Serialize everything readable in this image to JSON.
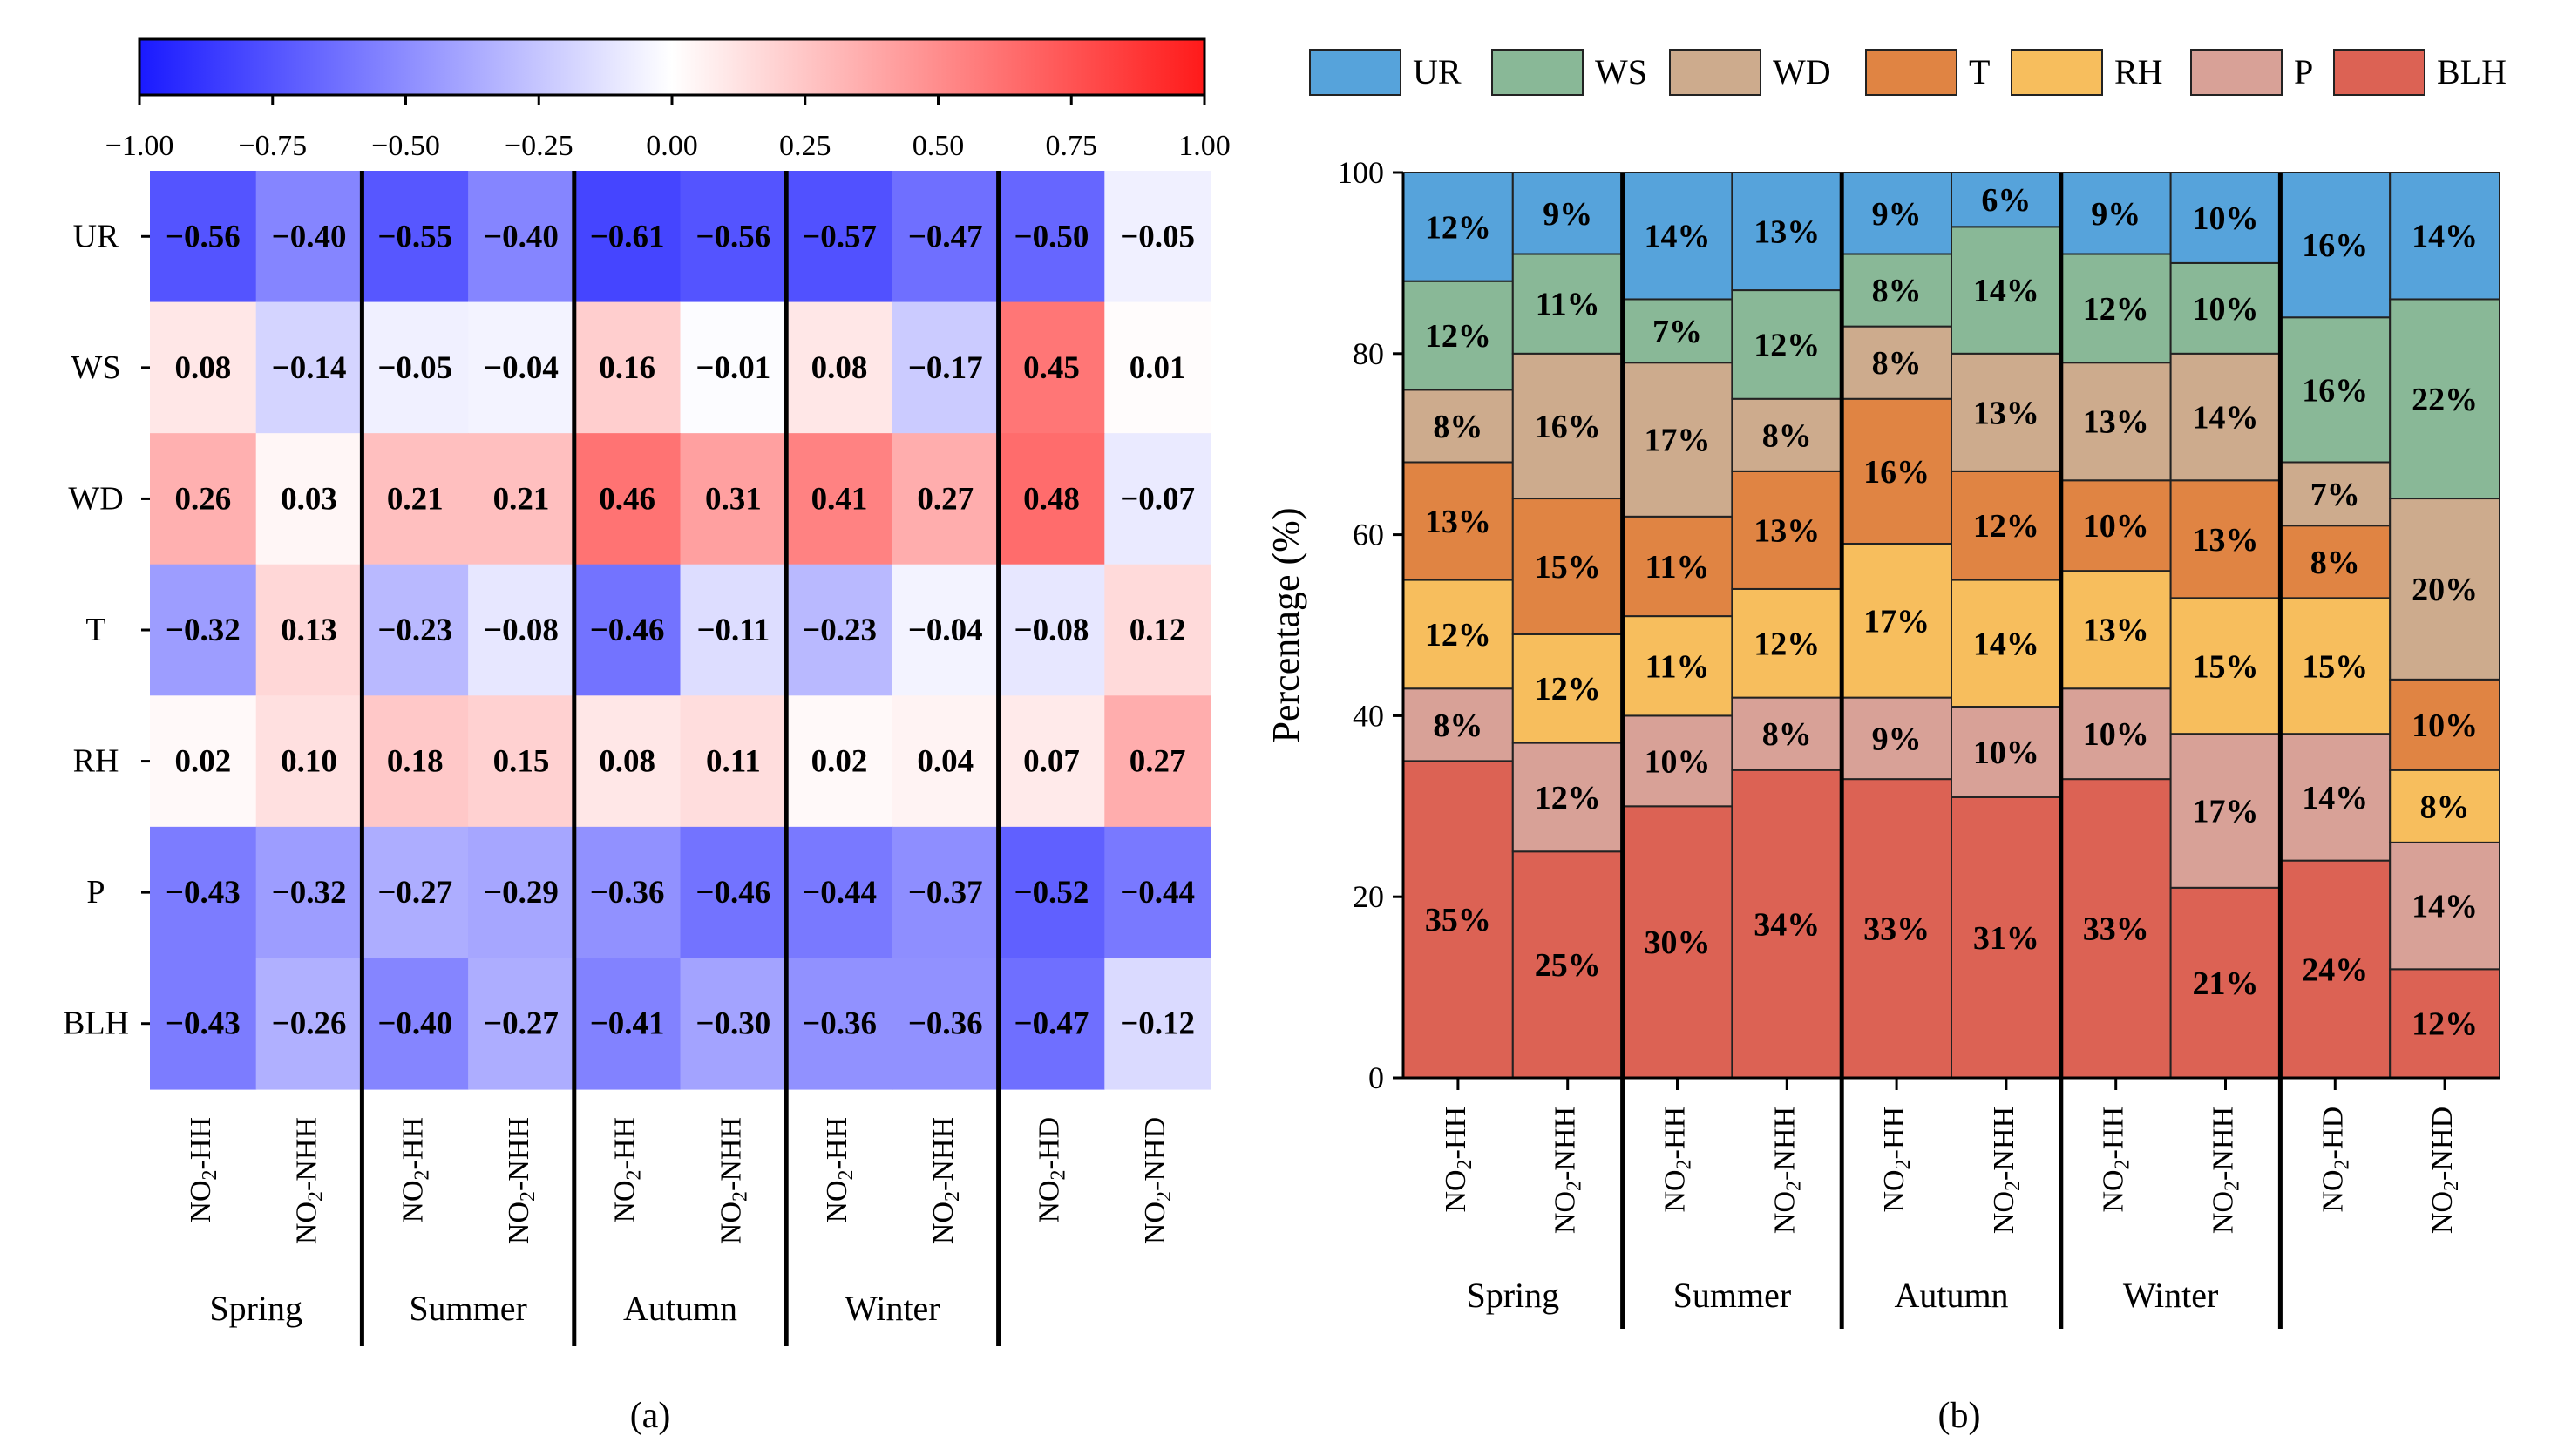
{
  "chart_data": [
    {
      "type": "heatmap",
      "panel_label": "(a)",
      "colorbar": {
        "ticks": [
          "−1.00",
          "−0.75",
          "−0.50",
          "−0.25",
          "0.00",
          "0.25",
          "0.50",
          "0.75",
          "1.00"
        ],
        "range": [
          -1,
          1
        ],
        "low_color": "#1a1aff",
        "mid_color": "#ffffff",
        "high_color": "#ff1a1a"
      },
      "rows": [
        "UR",
        "WS",
        "WD",
        "T",
        "RH",
        "P",
        "BLH"
      ],
      "columns": [
        {
          "main": "NO",
          "sub": "2",
          "suffix": "-HH"
        },
        {
          "main": "NO",
          "sub": "2",
          "suffix": "-NHH"
        },
        {
          "main": "NO",
          "sub": "2",
          "suffix": "-HH"
        },
        {
          "main": "NO",
          "sub": "2",
          "suffix": "-NHH"
        },
        {
          "main": "NO",
          "sub": "2",
          "suffix": "-HH"
        },
        {
          "main": "NO",
          "sub": "2",
          "suffix": "-NHH"
        },
        {
          "main": "NO",
          "sub": "2",
          "suffix": "-HH"
        },
        {
          "main": "NO",
          "sub": "2",
          "suffix": "-NHH"
        },
        {
          "main": "NO",
          "sub": "2",
          "suffix": "-HD"
        },
        {
          "main": "NO",
          "sub": "2",
          "suffix": "-NHD"
        }
      ],
      "groups": [
        "Spring",
        "Summer",
        "Autumn",
        "Winter"
      ],
      "values": [
        [
          -0.56,
          -0.4,
          -0.55,
          -0.4,
          -0.61,
          -0.56,
          -0.57,
          -0.47,
          -0.5,
          -0.05
        ],
        [
          0.08,
          -0.14,
          -0.05,
          -0.04,
          0.16,
          -0.01,
          0.08,
          -0.17,
          0.45,
          0.01
        ],
        [
          0.26,
          0.03,
          0.21,
          0.21,
          0.46,
          0.31,
          0.41,
          0.27,
          0.48,
          -0.07
        ],
        [
          -0.32,
          0.13,
          -0.23,
          -0.08,
          -0.46,
          -0.11,
          -0.23,
          -0.04,
          -0.08,
          0.12
        ],
        [
          0.02,
          0.1,
          0.18,
          0.15,
          0.08,
          0.11,
          0.02,
          0.04,
          0.07,
          0.27
        ],
        [
          -0.43,
          -0.32,
          -0.27,
          -0.29,
          -0.36,
          -0.46,
          -0.44,
          -0.37,
          -0.52,
          -0.44
        ],
        [
          -0.43,
          -0.26,
          -0.4,
          -0.27,
          -0.41,
          -0.3,
          -0.36,
          -0.36,
          -0.47,
          -0.12
        ]
      ],
      "value_labels": [
        [
          "−0.56",
          "−0.40",
          "−0.55",
          "−0.40",
          "−0.61",
          "−0.56",
          "−0.57",
          "−0.47",
          "−0.50",
          "−0.05"
        ],
        [
          "0.08",
          "−0.14",
          "−0.05",
          "−0.04",
          "0.16",
          "−0.01",
          "0.08",
          "−0.17",
          "0.45",
          "0.01"
        ],
        [
          "0.26",
          "0.03",
          "0.21",
          "0.21",
          "0.46",
          "0.31",
          "0.41",
          "0.27",
          "0.48",
          "−0.07"
        ],
        [
          "−0.32",
          "0.13",
          "−0.23",
          "−0.08",
          "−0.46",
          "−0.11",
          "−0.23",
          "−0.04",
          "−0.08",
          "0.12"
        ],
        [
          "0.02",
          "0.10",
          "0.18",
          "0.15",
          "0.08",
          "0.11",
          "0.02",
          "0.04",
          "0.07",
          "0.27"
        ],
        [
          "−0.43",
          "−0.32",
          "−0.27",
          "−0.29",
          "−0.36",
          "−0.46",
          "−0.44",
          "−0.37",
          "−0.52",
          "−0.44"
        ],
        [
          "−0.43",
          "−0.26",
          "−0.40",
          "−0.27",
          "−0.41",
          "−0.30",
          "−0.36",
          "−0.36",
          "−0.47",
          "−0.12"
        ]
      ]
    },
    {
      "type": "bar",
      "stacked": true,
      "panel_label": "(b)",
      "ylabel": "Percentage (%)",
      "ylim": [
        0,
        100
      ],
      "yticks": [
        0,
        20,
        40,
        60,
        80,
        100
      ],
      "columns": [
        {
          "main": "NO",
          "sub": "2",
          "suffix": "-HH"
        },
        {
          "main": "NO",
          "sub": "2",
          "suffix": "-NHH"
        },
        {
          "main": "NO",
          "sub": "2",
          "suffix": "-HH"
        },
        {
          "main": "NO",
          "sub": "2",
          "suffix": "-NHH"
        },
        {
          "main": "NO",
          "sub": "2",
          "suffix": "-HH"
        },
        {
          "main": "NO",
          "sub": "2",
          "suffix": "-NHH"
        },
        {
          "main": "NO",
          "sub": "2",
          "suffix": "-HH"
        },
        {
          "main": "NO",
          "sub": "2",
          "suffix": "-NHH"
        },
        {
          "main": "NO",
          "sub": "2",
          "suffix": "-HD"
        },
        {
          "main": "NO",
          "sub": "2",
          "suffix": "-NHD"
        }
      ],
      "groups": [
        "Spring",
        "Summer",
        "Autumn",
        "Winter"
      ],
      "legend": [
        "UR",
        "WS",
        "WD",
        "T",
        "RH",
        "P",
        "BLH"
      ],
      "series": [
        {
          "name": "BLH",
          "color": "#dc6254",
          "values": [
            35,
            25,
            30,
            34,
            33,
            31,
            33,
            21,
            24,
            12
          ],
          "labels": [
            "35%",
            "25%",
            "30%",
            "34%",
            "33%",
            "31%",
            "33%",
            "21%",
            "24%",
            "12%"
          ]
        },
        {
          "name": "P",
          "color": "#d8a197",
          "values": [
            8,
            12,
            10,
            8,
            9,
            10,
            10,
            17,
            14,
            14
          ],
          "labels": [
            "8%",
            "12%",
            "10%",
            "8%",
            "9%",
            "10%",
            "10%",
            "17%",
            "14%",
            "14%"
          ]
        },
        {
          "name": "RH",
          "color": "#f7be5d",
          "values": [
            12,
            12,
            11,
            12,
            17,
            14,
            13,
            15,
            15,
            8
          ],
          "labels": [
            "12%",
            "12%",
            "11%",
            "12%",
            "17%",
            "14%",
            "13%",
            "15%",
            "15%",
            "8%"
          ]
        },
        {
          "name": "T",
          "color": "#e08443",
          "values": [
            13,
            15,
            11,
            13,
            16,
            12,
            10,
            13,
            8,
            10
          ],
          "labels": [
            "13%",
            "15%",
            "11%",
            "13%",
            "16%",
            "12%",
            "10%",
            "13%",
            "8%",
            "10%"
          ]
        },
        {
          "name": "WD",
          "color": "#cdab8d",
          "values": [
            8,
            16,
            17,
            8,
            8,
            13,
            13,
            14,
            7,
            20
          ],
          "labels": [
            "8%",
            "16%",
            "17%",
            "8%",
            "8%",
            "13%",
            "13%",
            "14%",
            "7%",
            "20%"
          ]
        },
        {
          "name": "WS",
          "color": "#89b897",
          "values": [
            12,
            11,
            7,
            12,
            8,
            14,
            12,
            10,
            16,
            22
          ],
          "labels": [
            "12%",
            "11%",
            "7%",
            "12%",
            "8%",
            "14%",
            "12%",
            "10%",
            "16%",
            "22%"
          ]
        },
        {
          "name": "UR",
          "color": "#56a3db",
          "values": [
            12,
            9,
            14,
            13,
            9,
            6,
            9,
            10,
            16,
            14
          ],
          "labels": [
            "12%",
            "9%",
            "14%",
            "13%",
            "9%",
            "6%",
            "9%",
            "10%",
            "16%",
            "14%"
          ]
        }
      ]
    }
  ]
}
